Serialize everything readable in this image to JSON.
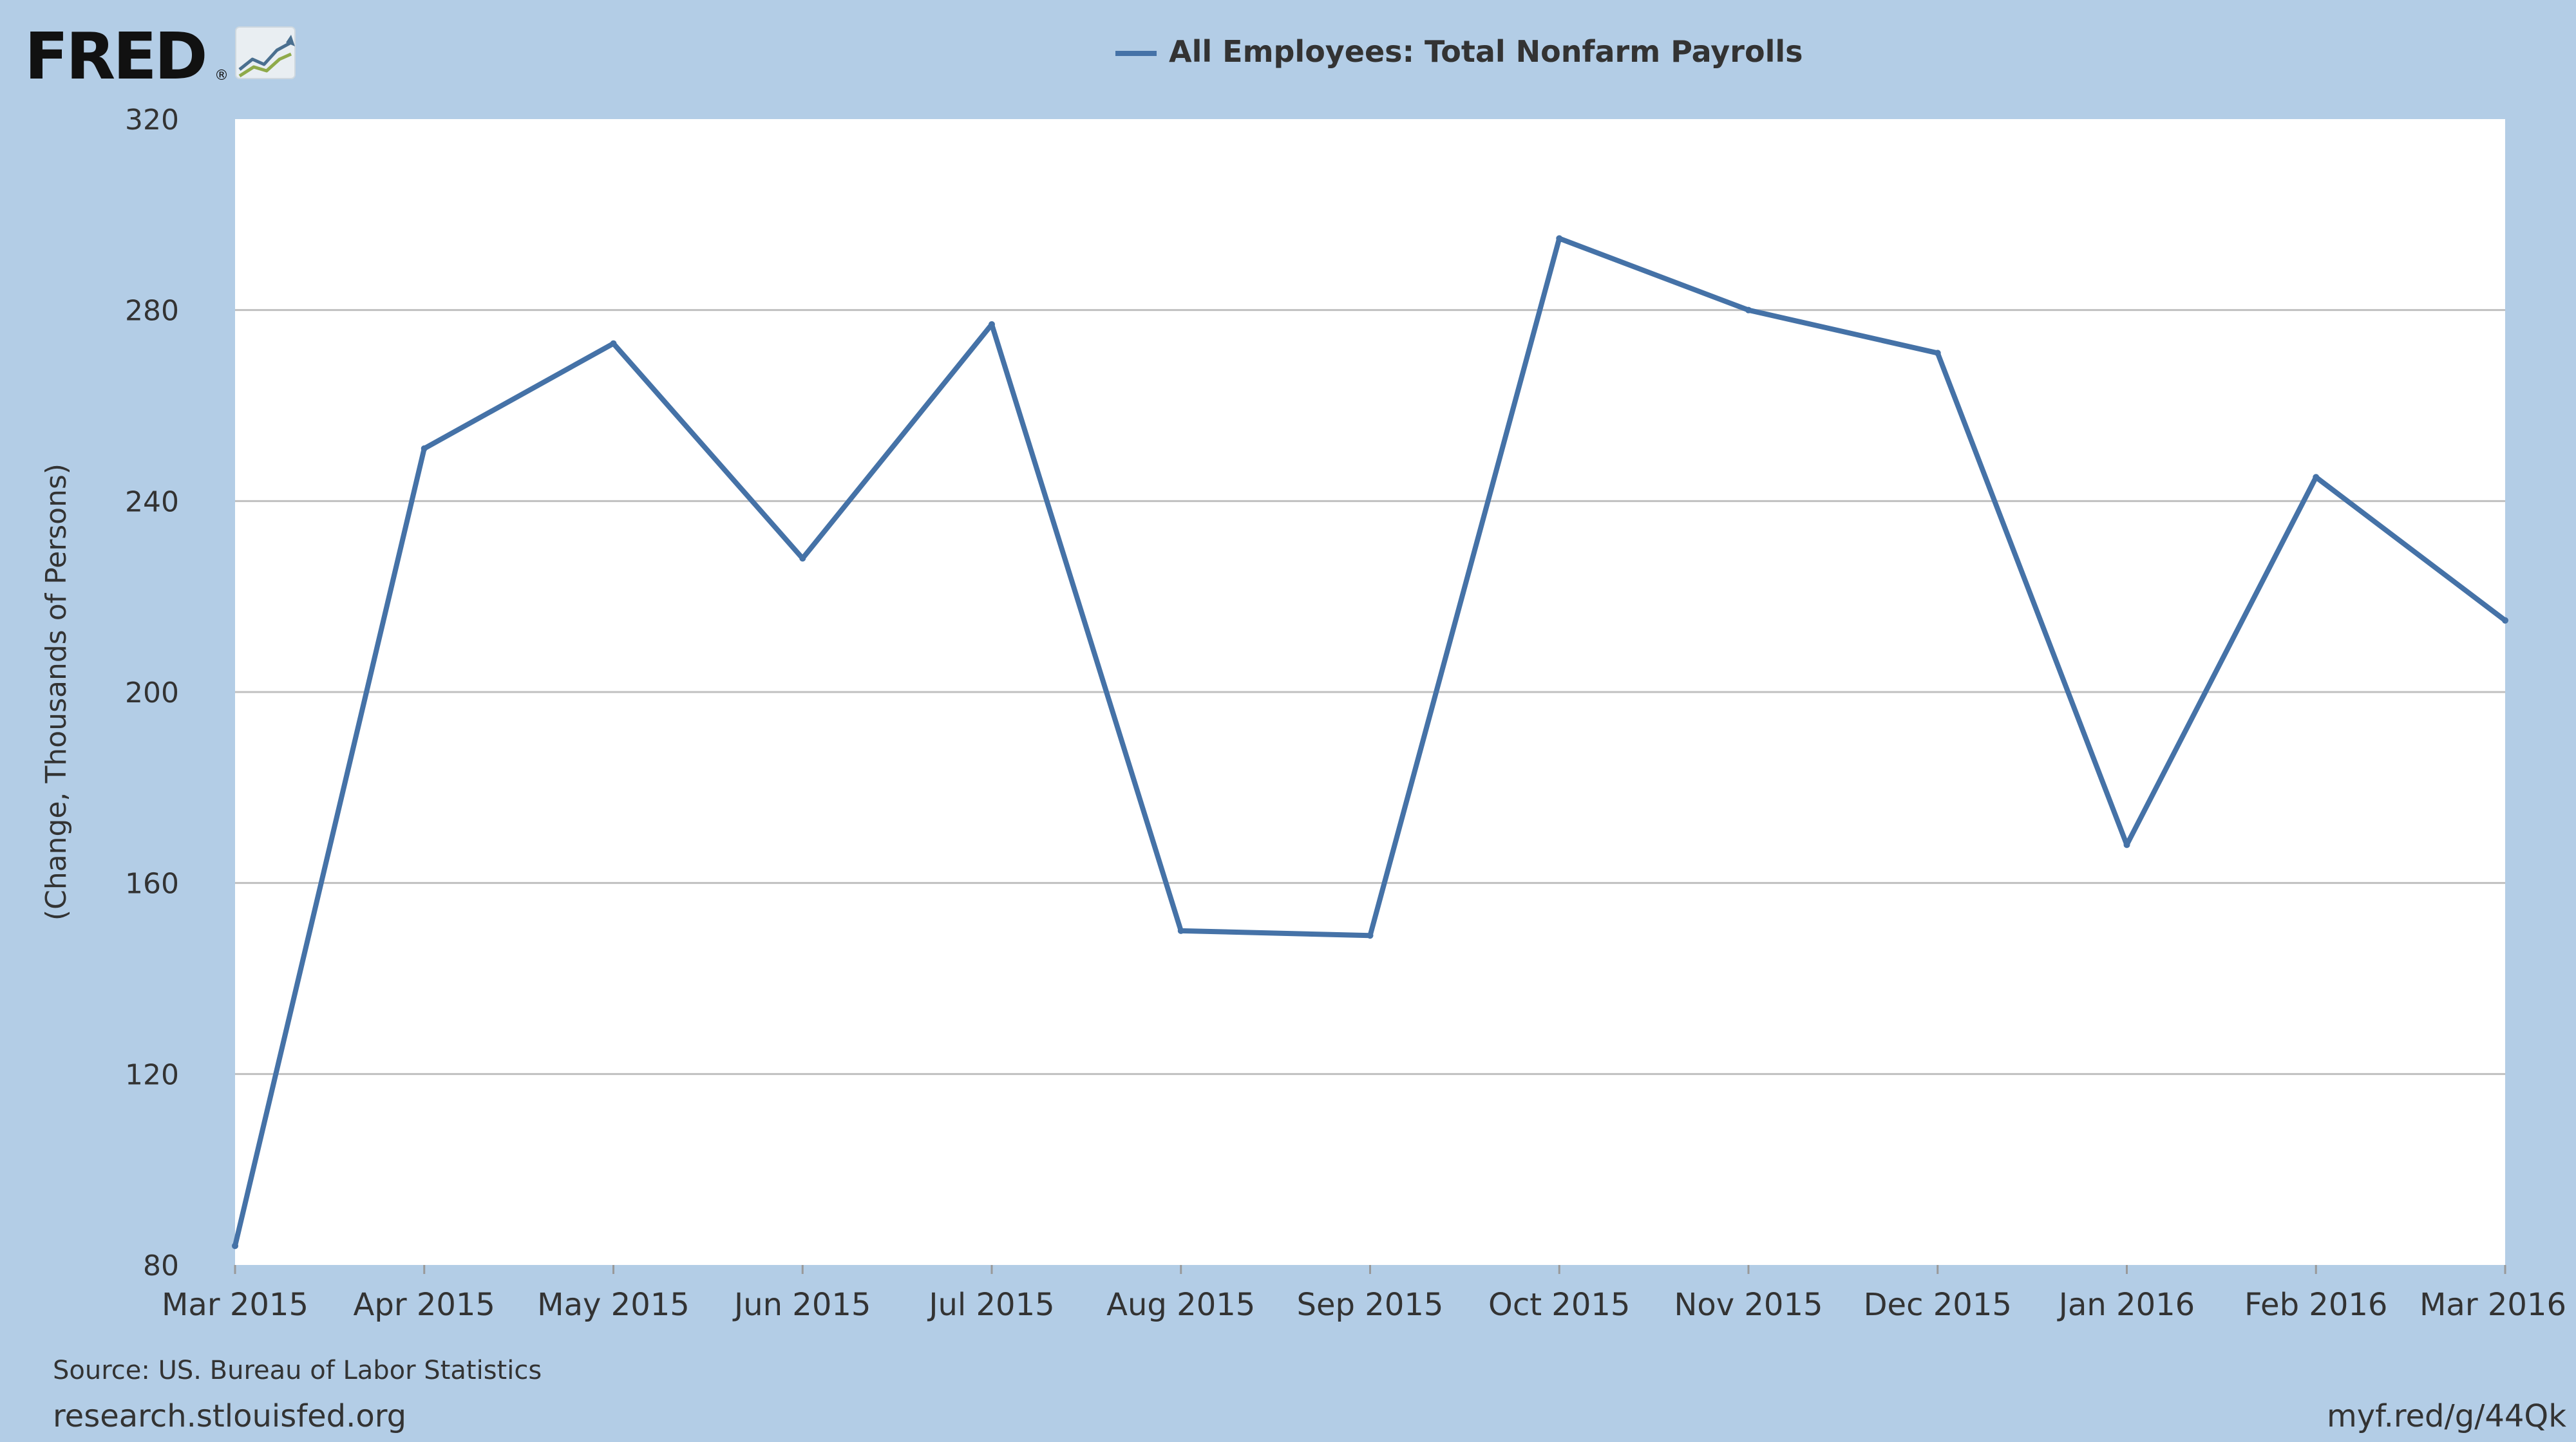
{
  "logo": {
    "text": "FRED",
    "registered": "®"
  },
  "colors": {
    "background": "#b3cde6",
    "plot_bg": "#ffffff",
    "series": "#4572a7",
    "grid": "#c0c0c0",
    "text": "#333333"
  },
  "footer": {
    "source": "Source: US. Bureau of Labor Statistics",
    "site": "research.stlouisfed.org",
    "short_url": "myf.red/g/44Qk"
  },
  "chart_data": {
    "type": "line",
    "title": "",
    "ylabel": "(Change, Thousands of Persons)",
    "xlabel": "",
    "ylim": [
      80,
      320
    ],
    "yticks": [
      80,
      120,
      160,
      200,
      240,
      280,
      320
    ],
    "grid": true,
    "legend_position": "top-center",
    "categories": [
      "Mar 2015",
      "Apr 2015",
      "May 2015",
      "Jun 2015",
      "Jul 2015",
      "Aug 2015",
      "Sep 2015",
      "Oct 2015",
      "Nov 2015",
      "Dec 2015",
      "Jan 2016",
      "Feb 2016",
      "Mar 2016"
    ],
    "series": [
      {
        "name": "All Employees: Total Nonfarm Payrolls",
        "color": "#4572a7",
        "values": [
          84,
          251,
          273,
          228,
          277,
          150,
          149,
          295,
          280,
          271,
          168,
          245,
          215
        ]
      }
    ]
  }
}
